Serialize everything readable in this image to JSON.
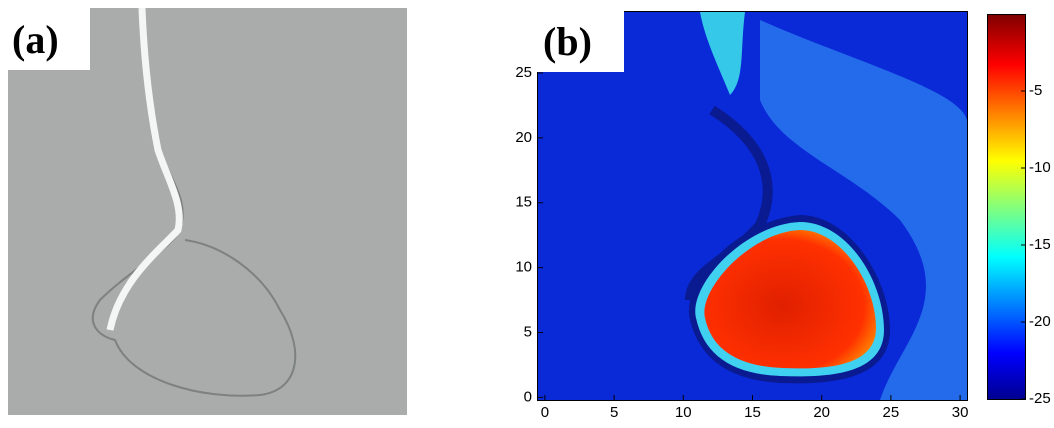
{
  "panels": [
    {
      "label": "(a)"
    },
    {
      "label": "(b)"
    }
  ],
  "chart_data": {
    "type": "heatmap",
    "xlim": [
      -0.5,
      30.5
    ],
    "xticks": [
      0,
      5,
      10,
      15,
      20,
      25,
      30
    ],
    "ylim": [
      -0.2,
      29.7
    ],
    "yticks": [
      0,
      5,
      10,
      15,
      20,
      25
    ],
    "colorbar": {
      "lim": [
        -25,
        0
      ],
      "ticks": [
        -5,
        -10,
        -15,
        -20,
        -25
      ],
      "colormap": "jet"
    }
  }
}
